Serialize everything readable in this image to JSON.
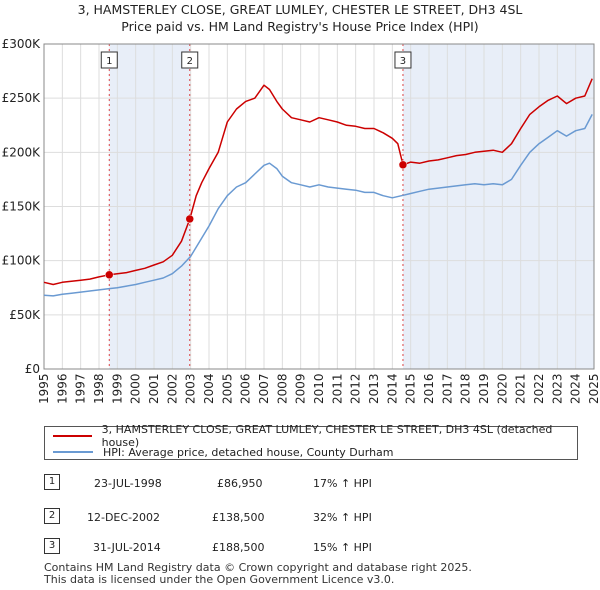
{
  "title_line1": "3, HAMSTERLEY CLOSE, GREAT LUMLEY, CHESTER LE STREET, DH3 4SL",
  "title_line2": "Price paid vs. HM Land Registry's House Price Index (HPI)",
  "colors": {
    "property": "#cc0000",
    "hpi": "#6a9ad2",
    "shade": "#e8eef8",
    "vline": "#dd4444",
    "grid": "#dddddd"
  },
  "legend": {
    "property": "3, HAMSTERLEY CLOSE, GREAT LUMLEY, CHESTER LE STREET, DH3 4SL (detached house)",
    "hpi": "HPI: Average price, detached house, County Durham"
  },
  "chart_data": {
    "type": "line",
    "xlim": [
      1995,
      2025
    ],
    "ylim": [
      0,
      300000
    ],
    "x_ticks": [
      "1995",
      "1996",
      "1997",
      "1998",
      "1999",
      "2000",
      "2001",
      "2002",
      "2003",
      "2004",
      "2005",
      "2006",
      "2007",
      "2008",
      "2009",
      "2010",
      "2011",
      "2012",
      "2013",
      "2014",
      "2015",
      "2016",
      "2017",
      "2018",
      "2019",
      "2020",
      "2021",
      "2022",
      "2023",
      "2024",
      "2025"
    ],
    "y_ticks": [
      {
        "value": 0,
        "label": "£0"
      },
      {
        "value": 50000,
        "label": "£50K"
      },
      {
        "value": 100000,
        "label": "£100K"
      },
      {
        "value": 150000,
        "label": "£150K"
      },
      {
        "value": 200000,
        "label": "£200K"
      },
      {
        "value": 250000,
        "label": "£250K"
      },
      {
        "value": 300000,
        "label": "£300K"
      }
    ],
    "series": [
      {
        "name": "3, HAMSTERLEY CLOSE, GREAT LUMLEY, CHESTER LE STREET, DH3 4SL (detached house)",
        "color": "#cc0000",
        "x": [
          1995.0,
          1995.5,
          1996.0,
          1996.5,
          1997.0,
          1997.5,
          1998.0,
          1998.56,
          1999.0,
          1999.5,
          2000.0,
          2000.5,
          2001.0,
          2001.5,
          2002.0,
          2002.5,
          2002.95,
          2003.3,
          2003.6,
          2004.0,
          2004.5,
          2005.0,
          2005.5,
          2006.0,
          2006.5,
          2007.0,
          2007.3,
          2007.7,
          2008.0,
          2008.5,
          2009.0,
          2009.5,
          2010.0,
          2010.5,
          2011.0,
          2011.5,
          2012.0,
          2012.5,
          2013.0,
          2013.5,
          2014.0,
          2014.3,
          2014.58,
          2015.0,
          2015.5,
          2016.0,
          2016.5,
          2017.0,
          2017.5,
          2018.0,
          2018.5,
          2019.0,
          2019.5,
          2020.0,
          2020.5,
          2021.0,
          2021.5,
          2022.0,
          2022.5,
          2023.0,
          2023.5,
          2024.0,
          2024.5,
          2024.9
        ],
        "y": [
          80000,
          78000,
          80000,
          81000,
          82000,
          83000,
          85000,
          86950,
          88000,
          89000,
          91000,
          93000,
          96000,
          99000,
          105000,
          118000,
          138500,
          160000,
          172000,
          185000,
          200000,
          228000,
          240000,
          247000,
          250000,
          262000,
          258000,
          247000,
          240000,
          232000,
          230000,
          228000,
          232000,
          230000,
          228000,
          225000,
          224000,
          222000,
          222000,
          218000,
          213000,
          208000,
          188500,
          191000,
          190000,
          192000,
          193000,
          195000,
          197000,
          198000,
          200000,
          201000,
          202000,
          200000,
          208000,
          222000,
          235000,
          242000,
          248000,
          252000,
          245000,
          250000,
          252000,
          268000
        ]
      },
      {
        "name": "HPI: Average price, detached house, County Durham",
        "color": "#6a9ad2",
        "x": [
          1995.0,
          1995.5,
          1996.0,
          1996.5,
          1997.0,
          1997.5,
          1998.0,
          1998.5,
          1999.0,
          1999.5,
          2000.0,
          2000.5,
          2001.0,
          2001.5,
          2002.0,
          2002.5,
          2003.0,
          2003.5,
          2004.0,
          2004.5,
          2005.0,
          2005.5,
          2006.0,
          2006.5,
          2007.0,
          2007.3,
          2007.7,
          2008.0,
          2008.5,
          2009.0,
          2009.5,
          2010.0,
          2010.5,
          2011.0,
          2011.5,
          2012.0,
          2012.5,
          2013.0,
          2013.5,
          2014.0,
          2014.5,
          2015.0,
          2015.5,
          2016.0,
          2016.5,
          2017.0,
          2017.5,
          2018.0,
          2018.5,
          2019.0,
          2019.5,
          2020.0,
          2020.5,
          2021.0,
          2021.5,
          2022.0,
          2022.5,
          2023.0,
          2023.5,
          2024.0,
          2024.5,
          2024.9
        ],
        "y": [
          68000,
          67500,
          69000,
          70000,
          71000,
          72000,
          73000,
          74000,
          75000,
          76500,
          78000,
          80000,
          82000,
          84000,
          88000,
          95000,
          104000,
          118000,
          132000,
          148000,
          160000,
          168000,
          172000,
          180000,
          188000,
          190000,
          185000,
          178000,
          172000,
          170000,
          168000,
          170000,
          168000,
          167000,
          166000,
          165000,
          163000,
          163000,
          160000,
          158000,
          160000,
          162000,
          164000,
          166000,
          167000,
          168000,
          169000,
          170000,
          171000,
          170000,
          171000,
          170000,
          175000,
          188000,
          200000,
          208000,
          214000,
          220000,
          215000,
          220000,
          222000,
          235000
        ]
      }
    ],
    "sales": [
      {
        "id": "1",
        "x": 1998.56,
        "y": 86950,
        "date": "23-JUL-1998",
        "price": "£86,950",
        "hpi": "17% ↑ HPI"
      },
      {
        "id": "2",
        "x": 2002.95,
        "y": 138500,
        "date": "12-DEC-2002",
        "price": "£138,500",
        "hpi": "32% ↑ HPI"
      },
      {
        "id": "3",
        "x": 2014.58,
        "y": 188500,
        "date": "31-JUL-2014",
        "price": "£188,500",
        "hpi": "15% ↑ HPI"
      }
    ],
    "shaded_spans": [
      [
        1998.56,
        2002.95
      ],
      [
        2014.58,
        2025
      ]
    ]
  },
  "footer": {
    "line1": "Contains HM Land Registry data © Crown copyright and database right 2025.",
    "line2": "This data is licensed under the Open Government Licence v3.0."
  }
}
